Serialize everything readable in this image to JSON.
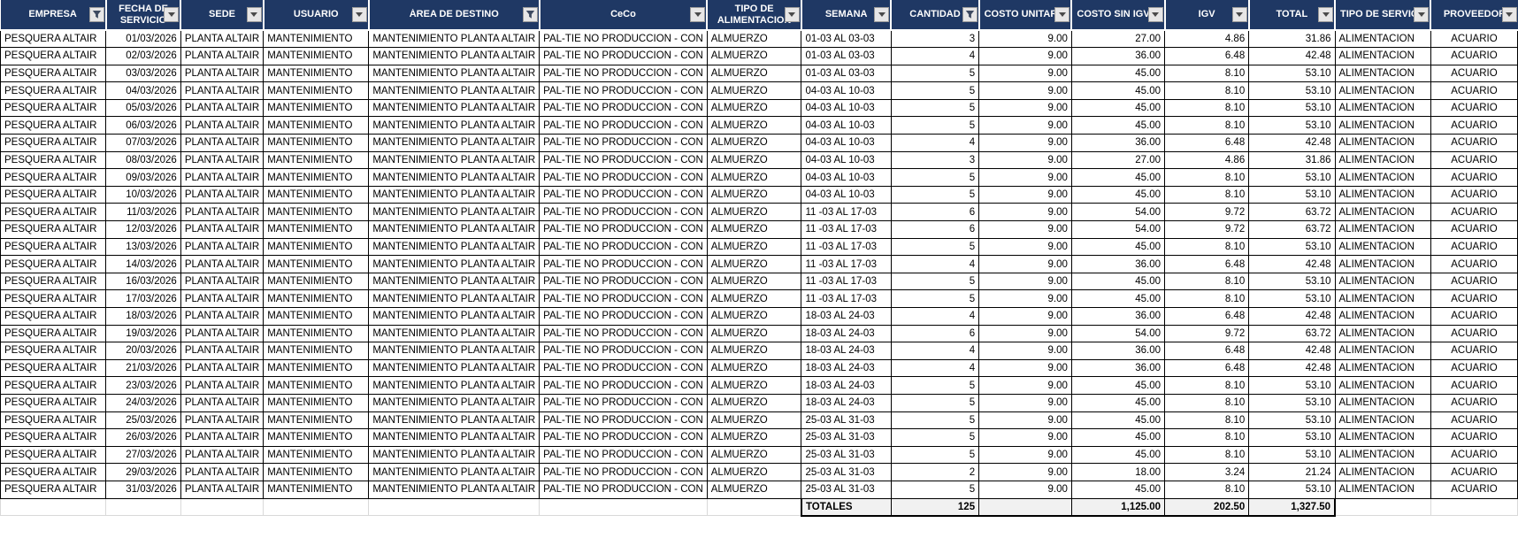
{
  "colors": {
    "header_bg": "#1F3864",
    "header_text": "#FFFFFF",
    "grid_line": "#000000",
    "totals_bg": "#F1F1F1",
    "filter_button_bg": "#E7E6E6"
  },
  "table": {
    "columns": [
      {
        "id": "empresa",
        "label": "EMPRESA",
        "filter": "funnel",
        "wrap": false,
        "header_align": "center",
        "cell_align": "left"
      },
      {
        "id": "fecha_servicio",
        "label": "FECHA DE SERVICIO",
        "filter": "arrow",
        "wrap": true,
        "header_align": "center",
        "cell_align": "right"
      },
      {
        "id": "sede",
        "label": "SEDE",
        "filter": "arrow",
        "wrap": false,
        "header_align": "center",
        "cell_align": "left"
      },
      {
        "id": "usuario",
        "label": "USUARIO",
        "filter": "arrow",
        "wrap": false,
        "header_align": "center",
        "cell_align": "left"
      },
      {
        "id": "area_destino",
        "label": "ÁREA  DE DESTINO",
        "filter": "funnel",
        "wrap": false,
        "header_align": "center",
        "cell_align": "left"
      },
      {
        "id": "ceco",
        "label": "CeCo",
        "filter": "arrow",
        "wrap": false,
        "header_align": "center",
        "cell_align": "left"
      },
      {
        "id": "tipo_alimentacion",
        "label": "TIPO DE ALIMENTACION",
        "filter": "arrow",
        "wrap": true,
        "header_align": "center",
        "cell_align": "left"
      },
      {
        "id": "semana",
        "label": "SEMANA",
        "filter": "arrow",
        "wrap": false,
        "header_align": "center",
        "cell_align": "left"
      },
      {
        "id": "cantidad",
        "label": "CANTIDAD",
        "filter": "funnel",
        "wrap": false,
        "header_align": "center",
        "cell_align": "right"
      },
      {
        "id": "costo_unitario",
        "label": "COSTO UNITARIO",
        "filter": "arrow",
        "wrap": false,
        "header_align": "left",
        "cell_align": "right"
      },
      {
        "id": "costo_sin_igv",
        "label": "COSTO SIN IGV",
        "filter": "arrow",
        "wrap": false,
        "header_align": "left",
        "cell_align": "right"
      },
      {
        "id": "igv",
        "label": "IGV",
        "filter": "arrow",
        "wrap": false,
        "header_align": "center",
        "cell_align": "right"
      },
      {
        "id": "total",
        "label": "TOTAL",
        "filter": "arrow",
        "wrap": false,
        "header_align": "center",
        "cell_align": "right"
      },
      {
        "id": "tipo_servicio",
        "label": "TIPO DE SERVICIO",
        "filter": "arrow",
        "wrap": false,
        "header_align": "left",
        "cell_align": "left"
      },
      {
        "id": "proveedor",
        "label": "PROVEEDOR",
        "filter": "arrow",
        "wrap": false,
        "header_align": "center",
        "cell_align": "center"
      }
    ],
    "constant_cells": {
      "empresa": "PESQUERA ALTAIR",
      "sede": "PLANTA ALTAIR",
      "usuario": "MANTENIMIENTO",
      "area_destino": "MANTENIMIENTO PLANTA ALTAIR",
      "ceco": "PAL-TIE NO PRODUCCION - CON",
      "tipo_alimentacion": "ALMUERZO",
      "tipo_servicio": "ALIMENTACION",
      "proveedor": "ACUARIO"
    },
    "rows": [
      {
        "fecha_servicio": "01/03/2026",
        "semana": "01-03 AL 03-03",
        "cantidad": "3",
        "costo_unitario": "9.00",
        "costo_sin_igv": "27.00",
        "igv": "4.86",
        "total": "31.86"
      },
      {
        "fecha_servicio": "02/03/2026",
        "semana": "01-03 AL 03-03",
        "cantidad": "4",
        "costo_unitario": "9.00",
        "costo_sin_igv": "36.00",
        "igv": "6.48",
        "total": "42.48"
      },
      {
        "fecha_servicio": "03/03/2026",
        "semana": "01-03 AL 03-03",
        "cantidad": "5",
        "costo_unitario": "9.00",
        "costo_sin_igv": "45.00",
        "igv": "8.10",
        "total": "53.10"
      },
      {
        "fecha_servicio": "04/03/2026",
        "semana": "04-03 AL 10-03",
        "cantidad": "5",
        "costo_unitario": "9.00",
        "costo_sin_igv": "45.00",
        "igv": "8.10",
        "total": "53.10"
      },
      {
        "fecha_servicio": "05/03/2026",
        "semana": "04-03 AL 10-03",
        "cantidad": "5",
        "costo_unitario": "9.00",
        "costo_sin_igv": "45.00",
        "igv": "8.10",
        "total": "53.10"
      },
      {
        "fecha_servicio": "06/03/2026",
        "semana": "04-03 AL 10-03",
        "cantidad": "5",
        "costo_unitario": "9.00",
        "costo_sin_igv": "45.00",
        "igv": "8.10",
        "total": "53.10"
      },
      {
        "fecha_servicio": "07/03/2026",
        "semana": "04-03 AL 10-03",
        "cantidad": "4",
        "costo_unitario": "9.00",
        "costo_sin_igv": "36.00",
        "igv": "6.48",
        "total": "42.48"
      },
      {
        "fecha_servicio": "08/03/2026",
        "semana": "04-03 AL 10-03",
        "cantidad": "3",
        "costo_unitario": "9.00",
        "costo_sin_igv": "27.00",
        "igv": "4.86",
        "total": "31.86"
      },
      {
        "fecha_servicio": "09/03/2026",
        "semana": "04-03 AL 10-03",
        "cantidad": "5",
        "costo_unitario": "9.00",
        "costo_sin_igv": "45.00",
        "igv": "8.10",
        "total": "53.10"
      },
      {
        "fecha_servicio": "10/03/2026",
        "semana": "04-03 AL 10-03",
        "cantidad": "5",
        "costo_unitario": "9.00",
        "costo_sin_igv": "45.00",
        "igv": "8.10",
        "total": "53.10"
      },
      {
        "fecha_servicio": "11/03/2026",
        "semana": "11 -03 AL 17-03",
        "cantidad": "6",
        "costo_unitario": "9.00",
        "costo_sin_igv": "54.00",
        "igv": "9.72",
        "total": "63.72"
      },
      {
        "fecha_servicio": "12/03/2026",
        "semana": "11 -03 AL 17-03",
        "cantidad": "6",
        "costo_unitario": "9.00",
        "costo_sin_igv": "54.00",
        "igv": "9.72",
        "total": "63.72"
      },
      {
        "fecha_servicio": "13/03/2026",
        "semana": "11 -03 AL 17-03",
        "cantidad": "5",
        "costo_unitario": "9.00",
        "costo_sin_igv": "45.00",
        "igv": "8.10",
        "total": "53.10"
      },
      {
        "fecha_servicio": "14/03/2026",
        "semana": "11 -03 AL 17-03",
        "cantidad": "4",
        "costo_unitario": "9.00",
        "costo_sin_igv": "36.00",
        "igv": "6.48",
        "total": "42.48"
      },
      {
        "fecha_servicio": "16/03/2026",
        "semana": "11 -03 AL 17-03",
        "cantidad": "5",
        "costo_unitario": "9.00",
        "costo_sin_igv": "45.00",
        "igv": "8.10",
        "total": "53.10"
      },
      {
        "fecha_servicio": "17/03/2026",
        "semana": "11 -03 AL 17-03",
        "cantidad": "5",
        "costo_unitario": "9.00",
        "costo_sin_igv": "45.00",
        "igv": "8.10",
        "total": "53.10"
      },
      {
        "fecha_servicio": "18/03/2026",
        "semana": "18-03 AL 24-03",
        "cantidad": "4",
        "costo_unitario": "9.00",
        "costo_sin_igv": "36.00",
        "igv": "6.48",
        "total": "42.48"
      },
      {
        "fecha_servicio": "19/03/2026",
        "semana": "18-03 AL 24-03",
        "cantidad": "6",
        "costo_unitario": "9.00",
        "costo_sin_igv": "54.00",
        "igv": "9.72",
        "total": "63.72"
      },
      {
        "fecha_servicio": "20/03/2026",
        "semana": "18-03 AL 24-03",
        "cantidad": "4",
        "costo_unitario": "9.00",
        "costo_sin_igv": "36.00",
        "igv": "6.48",
        "total": "42.48"
      },
      {
        "fecha_servicio": "21/03/2026",
        "semana": "18-03 AL 24-03",
        "cantidad": "4",
        "costo_unitario": "9.00",
        "costo_sin_igv": "36.00",
        "igv": "6.48",
        "total": "42.48"
      },
      {
        "fecha_servicio": "23/03/2026",
        "semana": "18-03 AL 24-03",
        "cantidad": "5",
        "costo_unitario": "9.00",
        "costo_sin_igv": "45.00",
        "igv": "8.10",
        "total": "53.10"
      },
      {
        "fecha_servicio": "24/03/2026",
        "semana": "18-03 AL 24-03",
        "cantidad": "5",
        "costo_unitario": "9.00",
        "costo_sin_igv": "45.00",
        "igv": "8.10",
        "total": "53.10"
      },
      {
        "fecha_servicio": "25/03/2026",
        "semana": "25-03 AL 31-03",
        "cantidad": "5",
        "costo_unitario": "9.00",
        "costo_sin_igv": "45.00",
        "igv": "8.10",
        "total": "53.10"
      },
      {
        "fecha_servicio": "26/03/2026",
        "semana": "25-03 AL 31-03",
        "cantidad": "5",
        "costo_unitario": "9.00",
        "costo_sin_igv": "45.00",
        "igv": "8.10",
        "total": "53.10"
      },
      {
        "fecha_servicio": "27/03/2026",
        "semana": "25-03 AL 31-03",
        "cantidad": "5",
        "costo_unitario": "9.00",
        "costo_sin_igv": "45.00",
        "igv": "8.10",
        "total": "53.10"
      },
      {
        "fecha_servicio": "29/03/2026",
        "semana": "25-03 AL 31-03",
        "cantidad": "2",
        "costo_unitario": "9.00",
        "costo_sin_igv": "18.00",
        "igv": "3.24",
        "total": "21.24"
      },
      {
        "fecha_servicio": "31/03/2026",
        "semana": "25-03 AL 31-03",
        "cantidad": "5",
        "costo_unitario": "9.00",
        "costo_sin_igv": "45.00",
        "igv": "8.10",
        "total": "53.10"
      }
    ],
    "totals": {
      "semana": "TOTALES",
      "cantidad": "125",
      "costo_unitario": "",
      "costo_sin_igv": "1,125.00",
      "igv": "202.50",
      "total": "1,327.50"
    }
  }
}
